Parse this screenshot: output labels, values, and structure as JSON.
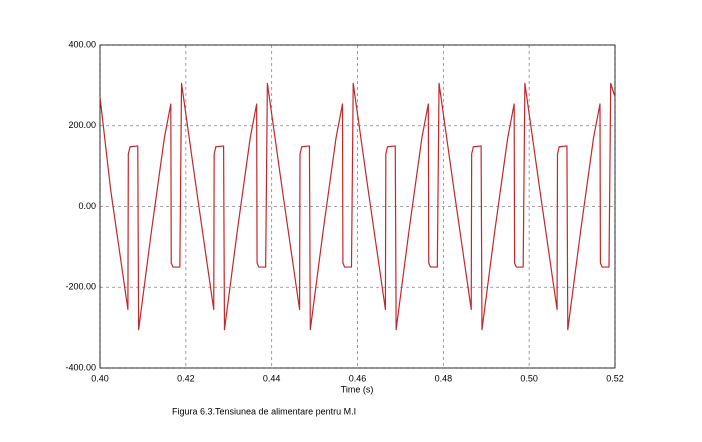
{
  "chart_data": {
    "type": "line",
    "x_label": "Time (s)",
    "caption": "Figura 6.3.Tensiunea de alimentare pentru M.I",
    "x": [
      0.4,
      0.4025,
      0.4065,
      0.4066,
      0.407,
      0.4088,
      0.409,
      0.412,
      0.415,
      0.4165,
      0.4166,
      0.417,
      0.4186,
      0.419,
      0.4225,
      0.4265,
      0.4266,
      0.427,
      0.4288,
      0.429,
      0.432,
      0.435,
      0.4365,
      0.4366,
      0.437,
      0.4386,
      0.439,
      0.4425,
      0.4465,
      0.4466,
      0.447,
      0.4488,
      0.449,
      0.452,
      0.455,
      0.4565,
      0.4566,
      0.457,
      0.4586,
      0.459,
      0.4625,
      0.4665,
      0.4666,
      0.467,
      0.4688,
      0.469,
      0.472,
      0.475,
      0.4765,
      0.4766,
      0.477,
      0.4786,
      0.479,
      0.4825,
      0.4865,
      0.4866,
      0.487,
      0.4888,
      0.489,
      0.492,
      0.495,
      0.4965,
      0.4966,
      0.497,
      0.4986,
      0.499,
      0.5025,
      0.5065,
      0.5066,
      0.507,
      0.5088,
      0.509,
      0.512,
      0.515,
      0.5165,
      0.5166,
      0.517,
      0.5186,
      0.519,
      0.52
    ],
    "series": [
      {
        "color": "#c0282d",
        "values": [
          271,
          40,
          -255,
          130,
          148,
          150,
          -305,
          -60,
          170,
          254,
          -140,
          -150,
          -150,
          305,
          40,
          -255,
          130,
          148,
          150,
          -305,
          -60,
          170,
          254,
          -140,
          -150,
          -150,
          305,
          40,
          -255,
          130,
          148,
          150,
          -305,
          -60,
          170,
          254,
          -140,
          -150,
          -150,
          305,
          40,
          -255,
          130,
          148,
          150,
          -305,
          -60,
          170,
          254,
          -140,
          -150,
          -150,
          305,
          40,
          -255,
          130,
          148,
          150,
          -305,
          -60,
          170,
          254,
          -140,
          -150,
          -150,
          305,
          40,
          -255,
          130,
          148,
          150,
          -305,
          -60,
          170,
          254,
          -140,
          -150,
          -150,
          305,
          271
        ]
      }
    ],
    "xlim": [
      0.4,
      0.52
    ],
    "xticks": [
      {
        "value": 0.4,
        "label": "0.40"
      },
      {
        "value": 0.42,
        "label": "0.42"
      },
      {
        "value": 0.44,
        "label": "0.44"
      },
      {
        "value": 0.46,
        "label": "0.46"
      },
      {
        "value": 0.48,
        "label": "0.48"
      },
      {
        "value": 0.5,
        "label": "0.50"
      },
      {
        "value": 0.52,
        "label": "0.52"
      }
    ],
    "ylim": [
      -400,
      400
    ],
    "yticks": [
      {
        "value": -400,
        "label": "-400.00"
      },
      {
        "value": -200,
        "label": "-200.00"
      },
      {
        "value": 0,
        "label": "0.00"
      },
      {
        "value": 200,
        "label": "200.00"
      },
      {
        "value": 400,
        "label": "400.00"
      }
    ],
    "grid": true
  }
}
